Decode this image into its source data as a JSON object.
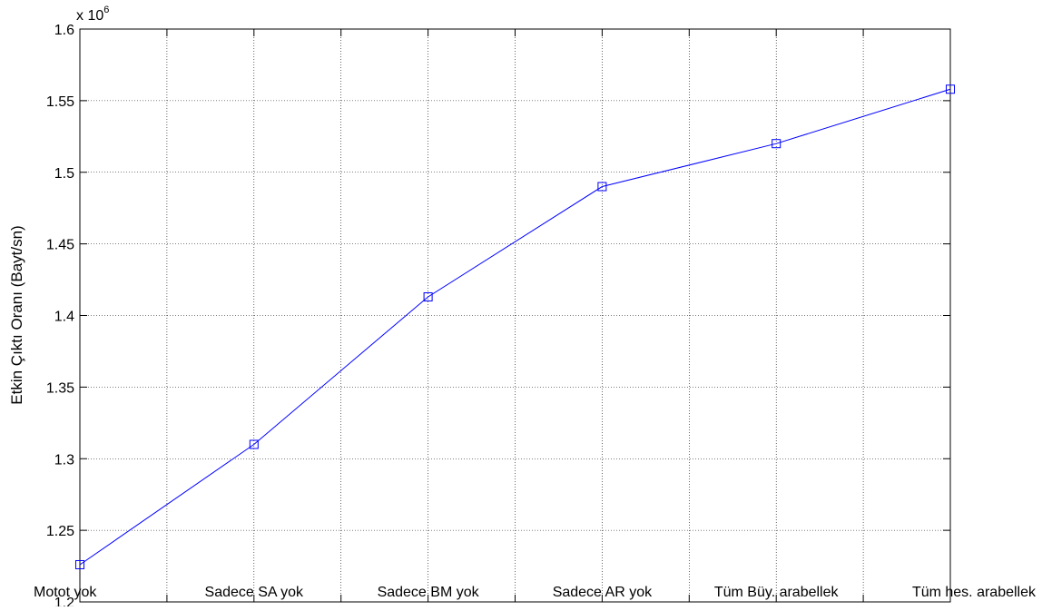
{
  "chart_data": {
    "type": "line",
    "title": "",
    "xlabel": "",
    "ylabel": "Etkin Çıktı Oranı (Bayt/sn)",
    "exponent_label": "x 10",
    "exponent_power": "6",
    "categories": [
      "Motot yok",
      "Sadece SA yok",
      "Sadece BM yok",
      "Sadece AR yok",
      "Tüm Büy. arabellek",
      "Tüm hes. arabellek"
    ],
    "series": [
      {
        "values": [
          1.226,
          1.31,
          1.413,
          1.49,
          1.52,
          1.558
        ],
        "color": "#0000ff",
        "marker": "square"
      }
    ],
    "ylim": [
      1.2,
      1.6
    ],
    "yticks": [
      1.2,
      1.25,
      1.3,
      1.35,
      1.4,
      1.45,
      1.5,
      1.55,
      1.6
    ],
    "ytick_labels": [
      "1.2",
      "1.25",
      "1.3",
      "1.35",
      "1.4",
      "1.45",
      "1.5",
      "1.55",
      "1.6"
    ],
    "x_gridlines": 10,
    "grid": true
  }
}
